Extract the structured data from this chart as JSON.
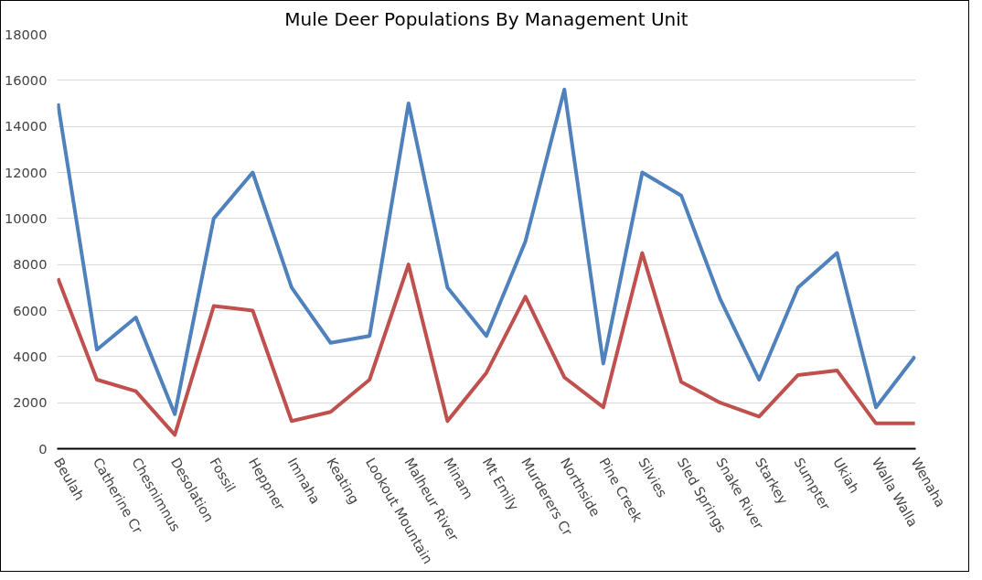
{
  "chart_data": {
    "type": "line",
    "title": "Mule Deer Populations By Management Unit",
    "categories": [
      "Beulah",
      "Catherine Cr",
      "Chesnimnus",
      "Desolation",
      "Fossil",
      "Heppner",
      "Imnaha",
      "Keating",
      "Lookout Mountain",
      "Malheur River",
      "Minam",
      "Mt Emily",
      "Murderers Cr",
      "Northside",
      "Pine Creek",
      "Silvies",
      "Sled Springs",
      "Snake River",
      "Starkey",
      "Sumpter",
      "Ukiah",
      "Walla Walla",
      "Wenaha"
    ],
    "series": [
      {
        "color": "#4f81bd",
        "values": [
          15000,
          4300,
          5700,
          1500,
          10000,
          12000,
          7000,
          4600,
          4900,
          15000,
          7000,
          4900,
          9000,
          15600,
          3700,
          12000,
          11000,
          6500,
          3000,
          7000,
          8500,
          1800,
          4000
        ]
      },
      {
        "color": "#c0504d",
        "values": [
          7400,
          3000,
          2500,
          600,
          6200,
          6000,
          1200,
          1600,
          3000,
          8000,
          1200,
          3300,
          6600,
          3100,
          1800,
          8500,
          2900,
          2000,
          1400,
          3200,
          3400,
          1100,
          1100
        ]
      }
    ],
    "ylim": [
      0,
      18000
    ],
    "yticks": [
      0,
      2000,
      4000,
      6000,
      8000,
      10000,
      12000,
      14000,
      16000,
      18000
    ],
    "grid": "y",
    "marker": "none",
    "line_style": "solid"
  }
}
